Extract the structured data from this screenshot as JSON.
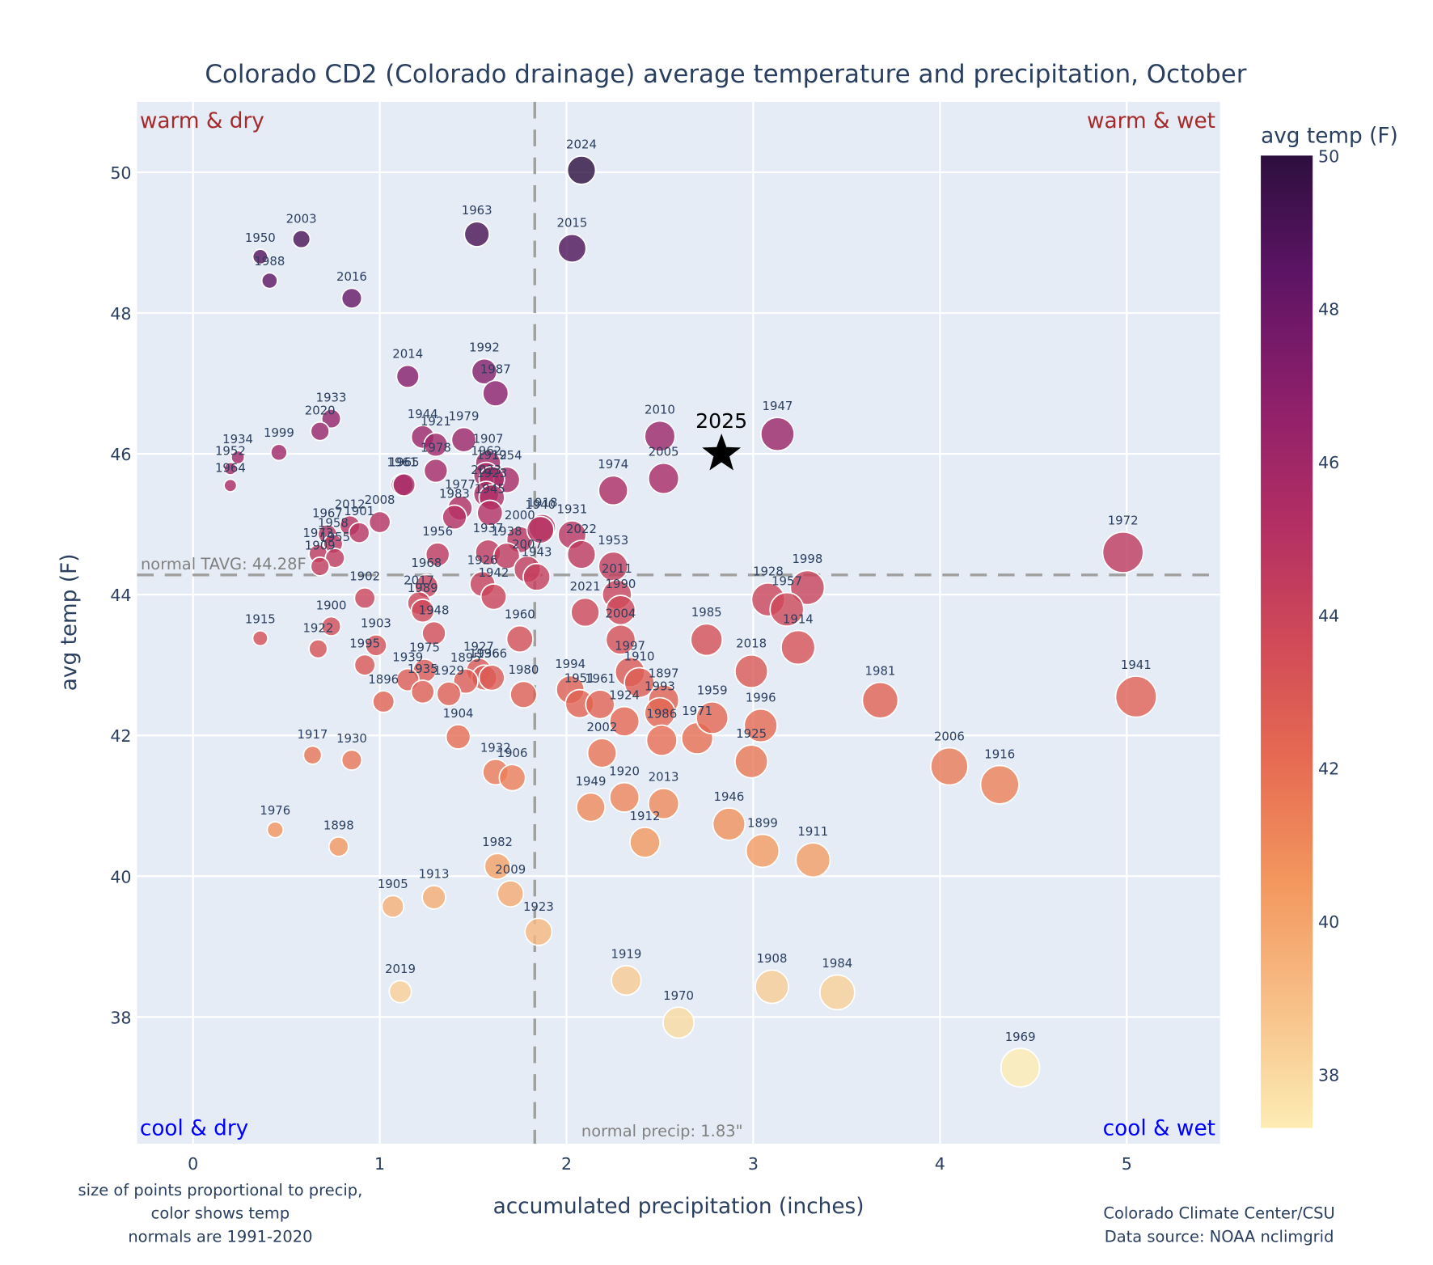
{
  "chart_data": {
    "type": "scatter",
    "title": "Colorado CD2 (Colorado drainage) average temperature and precipitation, October",
    "xlabel": "accumulated precipitation (inches)",
    "ylabel": "avg temp (F)",
    "xlim": [
      -0.3,
      5.5
    ],
    "ylim": [
      36.2,
      51.0
    ],
    "xticks": [
      0,
      1,
      2,
      3,
      4,
      5
    ],
    "yticks": [
      38,
      40,
      42,
      44,
      46,
      48,
      50
    ],
    "grid": true,
    "colorbar": {
      "title": "avg temp (F)",
      "range": [
        37.3,
        50.0
      ],
      "ticks": [
        38,
        40,
        42,
        44,
        46,
        48,
        50
      ],
      "colorscale": "magma-reversed"
    },
    "quadrant_labels": {
      "top_left": "warm & dry",
      "top_right": "warm & wet",
      "bottom_left": "cool & dry",
      "bottom_right": "cool & wet"
    },
    "quadrant_colors": {
      "warm": "#a52a2a",
      "cool": "#0000ff"
    },
    "normal_temp": {
      "value": 44.28,
      "label": "normal TAVG: 44.28F"
    },
    "normal_precip": {
      "value": 1.83,
      "label": "normal precip: 1.83\""
    },
    "highlight": {
      "year": "2025",
      "precip": 2.83,
      "temp": 46.0
    },
    "points": [
      {
        "year": "2024",
        "x": 2.08,
        "y": 50.03
      },
      {
        "year": "1963",
        "x": 1.52,
        "y": 49.12
      },
      {
        "year": "2015",
        "x": 2.03,
        "y": 48.92
      },
      {
        "year": "1950",
        "x": 0.36,
        "y": 48.8
      },
      {
        "year": "2003",
        "x": 0.58,
        "y": 49.05
      },
      {
        "year": "1988",
        "x": 0.41,
        "y": 48.46
      },
      {
        "year": "2016",
        "x": 0.85,
        "y": 48.21
      },
      {
        "year": "2014",
        "x": 1.15,
        "y": 47.1
      },
      {
        "year": "1992",
        "x": 1.56,
        "y": 47.17
      },
      {
        "year": "1987",
        "x": 1.62,
        "y": 46.86
      },
      {
        "year": "1933",
        "x": 0.74,
        "y": 46.5
      },
      {
        "year": "2020",
        "x": 0.68,
        "y": 46.32
      },
      {
        "year": "1944",
        "x": 1.23,
        "y": 46.24
      },
      {
        "year": "1921",
        "x": 1.3,
        "y": 46.13
      },
      {
        "year": "1979",
        "x": 1.45,
        "y": 46.2
      },
      {
        "year": "1999",
        "x": 0.46,
        "y": 46.02
      },
      {
        "year": "1952",
        "x": 0.2,
        "y": 45.79
      },
      {
        "year": "1934",
        "x": 0.24,
        "y": 45.95
      },
      {
        "year": "1964",
        "x": 0.2,
        "y": 45.55
      },
      {
        "year": "2010",
        "x": 2.5,
        "y": 46.25
      },
      {
        "year": "1947",
        "x": 3.13,
        "y": 46.28
      },
      {
        "year": "1907",
        "x": 1.58,
        "y": 45.87
      },
      {
        "year": "1978",
        "x": 1.3,
        "y": 45.76
      },
      {
        "year": "1962",
        "x": 1.57,
        "y": 45.7
      },
      {
        "year": "1954",
        "x": 1.68,
        "y": 45.63
      },
      {
        "year": "1912",
        "x": 1.6,
        "y": 45.64
      },
      {
        "year": "1961",
        "x": 1.12,
        "y": 45.56
      },
      {
        "year": "1965",
        "x": 1.13,
        "y": 45.56
      },
      {
        "year": "1974",
        "x": 2.25,
        "y": 45.48
      },
      {
        "year": "2005",
        "x": 2.52,
        "y": 45.65
      },
      {
        "year": "2023",
        "x": 1.57,
        "y": 45.43
      },
      {
        "year": "1923",
        "x": 1.6,
        "y": 45.38
      },
      {
        "year": "1977",
        "x": 1.43,
        "y": 45.23
      },
      {
        "year": "1945",
        "x": 1.59,
        "y": 45.16
      },
      {
        "year": "1983",
        "x": 1.4,
        "y": 45.1
      },
      {
        "year": "2008",
        "x": 1.0,
        "y": 45.03
      },
      {
        "year": "2012",
        "x": 0.84,
        "y": 44.98
      },
      {
        "year": "1901",
        "x": 0.89,
        "y": 44.88
      },
      {
        "year": "1967",
        "x": 0.72,
        "y": 44.86
      },
      {
        "year": "1958",
        "x": 0.75,
        "y": 44.72
      },
      {
        "year": "1973",
        "x": 0.67,
        "y": 44.58
      },
      {
        "year": "1955",
        "x": 0.76,
        "y": 44.52
      },
      {
        "year": "1909",
        "x": 0.68,
        "y": 44.4
      },
      {
        "year": "2000",
        "x": 1.75,
        "y": 44.78
      },
      {
        "year": "1918",
        "x": 1.87,
        "y": 44.95
      },
      {
        "year": "1940",
        "x": 1.86,
        "y": 44.92
      },
      {
        "year": "1931",
        "x": 2.03,
        "y": 44.85
      },
      {
        "year": "1956",
        "x": 1.31,
        "y": 44.57
      },
      {
        "year": "1937",
        "x": 1.58,
        "y": 44.6
      },
      {
        "year": "1938",
        "x": 1.68,
        "y": 44.55
      },
      {
        "year": "2022",
        "x": 2.08,
        "y": 44.57
      },
      {
        "year": "2007",
        "x": 1.79,
        "y": 44.36
      },
      {
        "year": "1943",
        "x": 1.84,
        "y": 44.25
      },
      {
        "year": "1953",
        "x": 2.25,
        "y": 44.4
      },
      {
        "year": "1972",
        "x": 4.98,
        "y": 44.6
      },
      {
        "year": "1998",
        "x": 3.29,
        "y": 44.1
      },
      {
        "year": "1928",
        "x": 3.08,
        "y": 43.93
      },
      {
        "year": "1957",
        "x": 3.18,
        "y": 43.79
      },
      {
        "year": "1968",
        "x": 1.25,
        "y": 44.12
      },
      {
        "year": "1926",
        "x": 1.55,
        "y": 44.15
      },
      {
        "year": "1942",
        "x": 1.61,
        "y": 43.97
      },
      {
        "year": "2011",
        "x": 2.27,
        "y": 44.0
      },
      {
        "year": "1902",
        "x": 0.92,
        "y": 43.95
      },
      {
        "year": "2017",
        "x": 1.21,
        "y": 43.88
      },
      {
        "year": "1989",
        "x": 1.23,
        "y": 43.77
      },
      {
        "year": "2021",
        "x": 2.1,
        "y": 43.75
      },
      {
        "year": "1990",
        "x": 2.29,
        "y": 43.78
      },
      {
        "year": "1948",
        "x": 1.29,
        "y": 43.45
      },
      {
        "year": "1900",
        "x": 0.74,
        "y": 43.55
      },
      {
        "year": "1915",
        "x": 0.36,
        "y": 43.38
      },
      {
        "year": "1922",
        "x": 0.67,
        "y": 43.23
      },
      {
        "year": "1903",
        "x": 0.98,
        "y": 43.28
      },
      {
        "year": "1960",
        "x": 1.75,
        "y": 43.37
      },
      {
        "year": "2004",
        "x": 2.29,
        "y": 43.36
      },
      {
        "year": "1985",
        "x": 2.75,
        "y": 43.36
      },
      {
        "year": "2018",
        "x": 2.99,
        "y": 42.91
      },
      {
        "year": "1914",
        "x": 3.24,
        "y": 43.25
      },
      {
        "year": "1995",
        "x": 0.92,
        "y": 43.0
      },
      {
        "year": "1975",
        "x": 1.24,
        "y": 42.92
      },
      {
        "year": "1939",
        "x": 1.15,
        "y": 42.79
      },
      {
        "year": "1927",
        "x": 1.53,
        "y": 42.92
      },
      {
        "year": "1936",
        "x": 1.56,
        "y": 42.82
      },
      {
        "year": "1966",
        "x": 1.6,
        "y": 42.82
      },
      {
        "year": "1895",
        "x": 1.46,
        "y": 42.77
      },
      {
        "year": "1935",
        "x": 1.23,
        "y": 42.62
      },
      {
        "year": "1929",
        "x": 1.37,
        "y": 42.59
      },
      {
        "year": "1997",
        "x": 2.34,
        "y": 42.9
      },
      {
        "year": "1910",
        "x": 2.39,
        "y": 42.75
      },
      {
        "year": "1897",
        "x": 2.52,
        "y": 42.5
      },
      {
        "year": "1980",
        "x": 1.77,
        "y": 42.58
      },
      {
        "year": "1994",
        "x": 2.02,
        "y": 42.65
      },
      {
        "year": "1951",
        "x": 2.07,
        "y": 42.45
      },
      {
        "year": "1961b",
        "x": 2.18,
        "y": 42.44
      },
      {
        "year": "1993",
        "x": 2.5,
        "y": 42.32
      },
      {
        "year": "1924",
        "x": 2.31,
        "y": 42.2
      },
      {
        "year": "1986",
        "x": 2.51,
        "y": 41.93
      },
      {
        "year": "1971",
        "x": 2.7,
        "y": 41.96
      },
      {
        "year": "1959",
        "x": 2.78,
        "y": 42.25
      },
      {
        "year": "1996",
        "x": 3.04,
        "y": 42.14
      },
      {
        "year": "1925",
        "x": 2.99,
        "y": 41.63
      },
      {
        "year": "1981",
        "x": 3.68,
        "y": 42.5
      },
      {
        "year": "1941",
        "x": 5.05,
        "y": 42.55
      },
      {
        "year": "1896",
        "x": 1.02,
        "y": 42.48
      },
      {
        "year": "1904",
        "x": 1.42,
        "y": 41.98
      },
      {
        "year": "2002",
        "x": 2.19,
        "y": 41.75
      },
      {
        "year": "1917",
        "x": 0.64,
        "y": 41.72
      },
      {
        "year": "1930",
        "x": 0.85,
        "y": 41.65
      },
      {
        "year": "1932",
        "x": 1.62,
        "y": 41.48
      },
      {
        "year": "1906",
        "x": 1.71,
        "y": 41.4
      },
      {
        "year": "1920",
        "x": 2.31,
        "y": 41.12
      },
      {
        "year": "2013",
        "x": 2.52,
        "y": 41.03
      },
      {
        "year": "1949",
        "x": 2.13,
        "y": 40.98
      },
      {
        "year": "2006",
        "x": 4.05,
        "y": 41.56
      },
      {
        "year": "1916",
        "x": 4.32,
        "y": 41.3
      },
      {
        "year": "1946",
        "x": 2.87,
        "y": 40.74
      },
      {
        "year": "1899",
        "x": 3.05,
        "y": 40.36
      },
      {
        "year": "1911",
        "x": 3.32,
        "y": 40.23
      },
      {
        "year": "1912b",
        "x": 2.42,
        "y": 40.48
      },
      {
        "year": "1976",
        "x": 0.44,
        "y": 40.66
      },
      {
        "year": "1898",
        "x": 0.78,
        "y": 40.42
      },
      {
        "year": "1982",
        "x": 1.63,
        "y": 40.14
      },
      {
        "year": "2009",
        "x": 1.7,
        "y": 39.75
      },
      {
        "year": "1905",
        "x": 1.07,
        "y": 39.57
      },
      {
        "year": "1913",
        "x": 1.29,
        "y": 39.7
      },
      {
        "year": "1923b",
        "x": 1.85,
        "y": 39.21
      },
      {
        "year": "1919",
        "x": 2.32,
        "y": 38.52
      },
      {
        "year": "1908",
        "x": 3.1,
        "y": 38.43
      },
      {
        "year": "1984",
        "x": 3.45,
        "y": 38.35
      },
      {
        "year": "2019",
        "x": 1.11,
        "y": 38.36
      },
      {
        "year": "1970",
        "x": 2.6,
        "y": 37.92
      },
      {
        "year": "1969",
        "x": 4.43,
        "y": 37.28
      }
    ]
  },
  "annotations": {
    "left_note": [
      "size of points proportional to precip,",
      "color shows temp",
      "normals are 1991-2020"
    ],
    "credit": [
      "Colorado Climate Center/CSU",
      "Data source: NOAA nclimgrid"
    ]
  }
}
